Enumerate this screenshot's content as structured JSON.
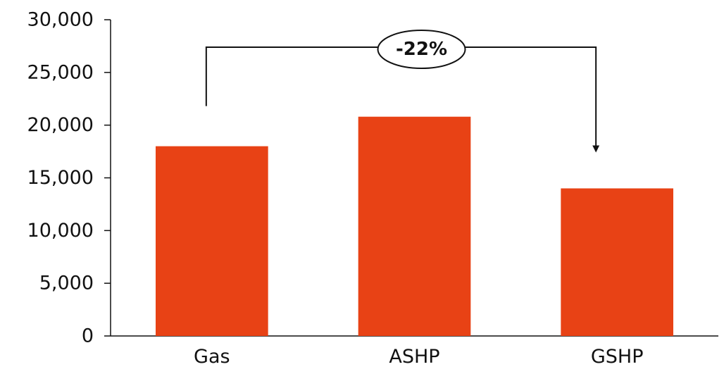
{
  "chart_data": {
    "type": "bar",
    "title": "",
    "xlabel": "",
    "ylabel": "",
    "categories": [
      "Gas",
      "ASHP",
      "GSHP"
    ],
    "values": [
      18000,
      20800,
      14000
    ],
    "ylim": [
      0,
      30000
    ],
    "yticks": [
      0,
      5000,
      10000,
      15000,
      20000,
      25000,
      30000
    ],
    "ytick_labels": [
      "0",
      "5,000",
      "10,000",
      "15,000",
      "20,000",
      "25,000",
      "30,000"
    ],
    "grid": false,
    "legend": "none",
    "bar_color": "#E84215",
    "annotation": {
      "text": "-22%",
      "from": "Gas",
      "to": "GSHP"
    }
  }
}
